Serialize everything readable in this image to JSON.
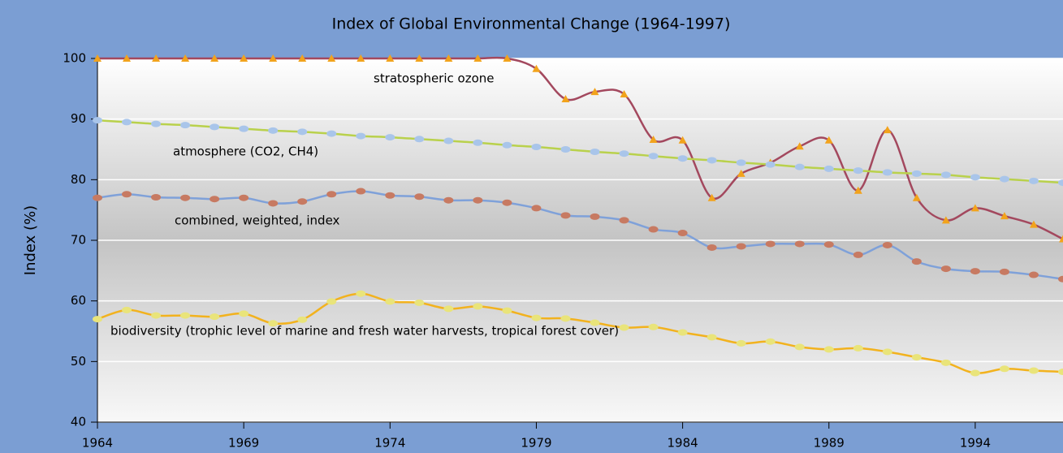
{
  "chart_data": {
    "type": "line",
    "title": "Index of Global Environmental Change (1964-1997)",
    "y_label": "Index (%)",
    "x": [
      1964,
      1965,
      1966,
      1967,
      1968,
      1969,
      1970,
      1971,
      1972,
      1973,
      1974,
      1975,
      1976,
      1977,
      1978,
      1979,
      1980,
      1981,
      1982,
      1983,
      1984,
      1985,
      1986,
      1987,
      1988,
      1989,
      1990,
      1991,
      1992,
      1993,
      1994,
      1995,
      1996,
      1997
    ],
    "xlim": [
      1964,
      1997
    ],
    "xticks": [
      1964,
      1969,
      1974,
      1979,
      1984,
      1989,
      1994
    ],
    "ylim": [
      40,
      100
    ],
    "yticks": [
      40,
      50,
      60,
      70,
      80,
      90,
      100
    ],
    "grid": true,
    "series": [
      {
        "name": "stratospheric ozone",
        "color": "#a3485e",
        "marker": "triangle",
        "marker_color": "#f2a31c",
        "values": [
          100,
          100,
          100,
          100,
          100,
          100,
          100,
          100,
          100,
          100,
          100,
          100,
          100,
          100,
          100,
          98.3,
          93.3,
          94.5,
          94.1,
          86.6,
          86.5,
          77,
          81,
          82.8,
          85.5,
          86.5,
          78.2,
          88.2,
          77,
          73.3,
          75.3,
          74,
          72.6,
          70.2
        ]
      },
      {
        "name": "atmosphere (CO2, CH4)",
        "color": "#b9d14c",
        "marker": "circle",
        "marker_color": "#a9c5ea",
        "values": [
          89.8,
          89.5,
          89.2,
          89,
          88.7,
          88.4,
          88.1,
          87.9,
          87.6,
          87.2,
          87,
          86.7,
          86.4,
          86.1,
          85.7,
          85.4,
          85,
          84.6,
          84.3,
          83.9,
          83.5,
          83.2,
          82.8,
          82.5,
          82.1,
          81.8,
          81.5,
          81.2,
          81,
          80.8,
          80.4,
          80.1,
          79.8,
          79.5
        ]
      },
      {
        "name": "combined, weighted, index",
        "color": "#7fa1d9",
        "marker": "circle",
        "marker_color": "#c77a62",
        "values": [
          77,
          77.6,
          77.1,
          77,
          76.8,
          77,
          76.1,
          76.4,
          77.6,
          78.1,
          77.4,
          77.2,
          76.6,
          76.6,
          76.2,
          75.3,
          74.1,
          73.9,
          73.3,
          71.8,
          71.2,
          68.8,
          69,
          69.4,
          69.4,
          69.3,
          67.6,
          69.2,
          66.5,
          65.3,
          64.9,
          64.8,
          64.3,
          63.6
        ]
      },
      {
        "name": "biodiversity (trophic level of marine and fresh water harvests, tropical forest cover)",
        "color": "#f2b21e",
        "marker": "circle",
        "marker_color": "#e9e47a",
        "values": [
          57,
          58.5,
          57.6,
          57.6,
          57.4,
          57.9,
          56.3,
          56.9,
          59.9,
          61.2,
          59.9,
          59.7,
          58.7,
          59.1,
          58.4,
          57.2,
          57.1,
          56.4,
          55.6,
          55.7,
          54.8,
          54,
          53,
          53.3,
          52.4,
          52,
          52.2,
          51.6,
          50.7,
          49.8,
          48.1,
          48.8,
          48.5,
          48.3
        ]
      }
    ]
  }
}
